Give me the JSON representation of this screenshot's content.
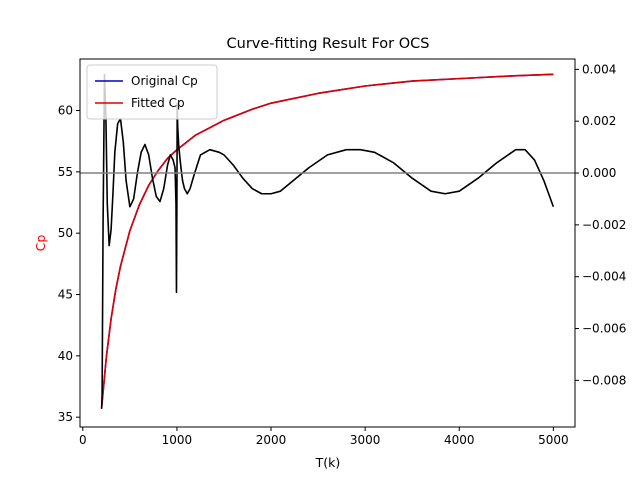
{
  "chart_data": {
    "type": "line",
    "title": "Curve-fitting Result For OCS",
    "xlabel": "T(k)",
    "ylabel": "Cp",
    "ylabel_color": "#ff0000",
    "xlim": [
      -30,
      5230
    ],
    "ylim": [
      34.2,
      64.2
    ],
    "xticks": [
      0,
      1000,
      2000,
      3000,
      4000,
      5000
    ],
    "yticks": [
      35,
      40,
      45,
      50,
      55,
      60
    ],
    "y2lim": [
      -0.0098,
      0.0044
    ],
    "y2ticks": [
      -0.008,
      -0.006,
      -0.004,
      -0.002,
      0.0,
      0.002,
      0.004
    ],
    "y2ticklabels": [
      "−0.008",
      "−0.006",
      "−0.004",
      "−0.002",
      "0.000",
      "0.002",
      "0.004"
    ],
    "legend_placement": "top-left",
    "grid": false,
    "series": [
      {
        "name": "Original Cp",
        "axis": "left",
        "color": "#0000cc",
        "x": [
          200,
          250,
          300,
          350,
          400,
          500,
          600,
          700,
          800,
          900,
          1000,
          1200,
          1500,
          1800,
          2000,
          2500,
          3000,
          3500,
          4000,
          4500,
          5000
        ],
        "y": [
          35.8,
          39.9,
          43.0,
          45.4,
          47.3,
          50.2,
          52.3,
          53.9,
          55.1,
          56.1,
          56.8,
          58.0,
          59.2,
          60.1,
          60.6,
          61.4,
          62.0,
          62.4,
          62.6,
          62.8,
          62.95
        ]
      },
      {
        "name": "Fitted Cp",
        "axis": "left",
        "color": "#dd0000",
        "x": [
          200,
          250,
          300,
          350,
          400,
          500,
          600,
          700,
          800,
          900,
          1000,
          1200,
          1500,
          1800,
          2000,
          2500,
          3000,
          3500,
          4000,
          4500,
          5000
        ],
        "y": [
          35.8,
          39.9,
          43.0,
          45.4,
          47.3,
          50.2,
          52.3,
          53.9,
          55.1,
          56.1,
          56.8,
          58.0,
          59.2,
          60.1,
          60.6,
          61.4,
          62.0,
          62.4,
          62.6,
          62.8,
          62.95
        ]
      },
      {
        "name": "",
        "axis": "right",
        "color": "#000000",
        "x": [
          200,
          205,
          215,
          230,
          245,
          260,
          280,
          300,
          320,
          340,
          370,
          400,
          430,
          460,
          500,
          540,
          580,
          620,
          660,
          700,
          740,
          780,
          820,
          860,
          900,
          930,
          960,
          980,
          990,
          995,
          1000,
          1003,
          1008,
          1020,
          1040,
          1060,
          1080,
          1110,
          1140,
          1180,
          1250,
          1350,
          1450,
          1500,
          1600,
          1700,
          1800,
          1900,
          2000,
          2100,
          2200,
          2400,
          2600,
          2800,
          2950,
          3100,
          3300,
          3500,
          3700,
          3850,
          4000,
          4200,
          4400,
          4600,
          4700,
          4800,
          4850,
          4900,
          4950,
          5000
        ],
        "y": [
          -0.0091,
          -0.0085,
          -0.002,
          0.0038,
          0.0022,
          -0.0012,
          -0.0028,
          -0.0022,
          -0.0008,
          0.0008,
          0.0019,
          0.0021,
          0.0012,
          -0.0003,
          -0.0013,
          -0.001,
          0.0,
          0.0008,
          0.0011,
          0.0007,
          -0.0002,
          -0.0009,
          -0.0011,
          -0.0006,
          0.0003,
          0.0007,
          0.0005,
          0.0002,
          -0.0012,
          -0.0046,
          -0.0009,
          0.0027,
          0.0018,
          0.001,
          0.0003,
          -0.0003,
          -0.0006,
          -0.0008,
          -0.0006,
          -0.0001,
          0.0007,
          0.0009,
          0.0008,
          0.0007,
          0.0003,
          -0.0002,
          -0.0006,
          -0.0008,
          -0.0008,
          -0.0007,
          -0.0004,
          0.0002,
          0.0007,
          0.0009,
          0.0009,
          0.0008,
          0.0004,
          -0.0002,
          -0.0007,
          -0.0008,
          -0.0007,
          -0.0002,
          0.0004,
          0.0009,
          0.0009,
          0.0005,
          0.0001,
          -0.0003,
          -0.0008,
          -0.0013
        ]
      }
    ],
    "hline": {
      "axis": "right",
      "y": 0.0,
      "color": "#808080"
    }
  }
}
